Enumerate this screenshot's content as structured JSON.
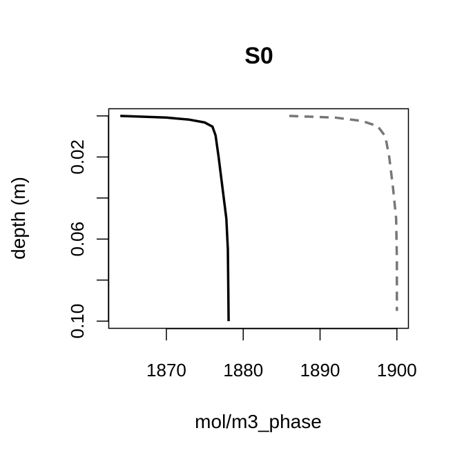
{
  "chart_data": {
    "type": "line",
    "title": "S0",
    "xlabel": "mol/m3_phase",
    "ylabel": "depth (m)",
    "xlim": [
      1862.5,
      1901.5
    ],
    "ylim": [
      0.1035,
      -0.0035
    ],
    "y_reversed": true,
    "x_ticks": [
      1870,
      1880,
      1890,
      1900
    ],
    "x_tick_labels": [
      "1870",
      "1880",
      "1890",
      "1900"
    ],
    "y_ticks": [
      0.0,
      0.02,
      0.04,
      0.06,
      0.08,
      0.1
    ],
    "y_tick_labels": [
      "",
      "0.02",
      "",
      "0.06",
      "",
      "0.10"
    ],
    "grid": false,
    "series": [
      {
        "style": "solid",
        "color": "#000000",
        "points": [
          [
            1864.0,
            0.0
          ],
          [
            1870.0,
            0.0008
          ],
          [
            1873.0,
            0.0018
          ],
          [
            1875.0,
            0.0032
          ],
          [
            1876.0,
            0.0052
          ],
          [
            1876.4,
            0.0095
          ],
          [
            1876.8,
            0.02
          ],
          [
            1877.3,
            0.035
          ],
          [
            1877.8,
            0.05
          ],
          [
            1878.0,
            0.065
          ],
          [
            1878.05,
            0.08
          ],
          [
            1878.1,
            0.1
          ]
        ]
      },
      {
        "style": "dashed",
        "color": "#777777",
        "points": [
          [
            1886.0,
            0.0
          ],
          [
            1892.0,
            0.0008
          ],
          [
            1895.5,
            0.0025
          ],
          [
            1897.5,
            0.005
          ],
          [
            1898.5,
            0.01
          ],
          [
            1899.0,
            0.02
          ],
          [
            1899.5,
            0.035
          ],
          [
            1899.9,
            0.05
          ],
          [
            1900.0,
            0.07
          ],
          [
            1900.0,
            0.095
          ]
        ]
      }
    ]
  }
}
